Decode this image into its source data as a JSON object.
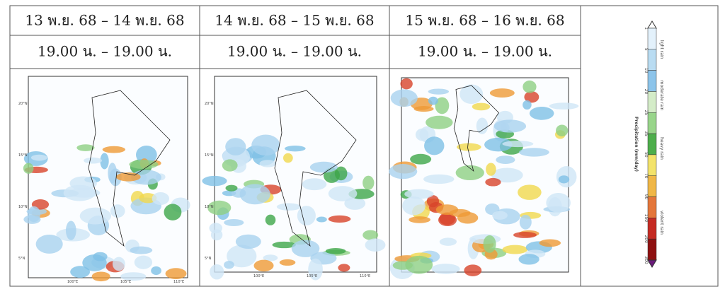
{
  "header": {
    "dates": [
      "13 พ.ย. 68 – 14 พ.ย. 68",
      "14 พ.ย. 68 – 15 พ.ย. 68",
      "15 พ.ย. 68 – 16 พ.ย. 68"
    ],
    "times": [
      "19.00 น. – 19.00 น.",
      "19.00 น. – 19.00 น.",
      "19.00 น. – 19.00 น."
    ]
  },
  "maps": [
    {
      "lat_labels": [
        "20°N",
        "15°N",
        "10°N",
        "5°N"
      ],
      "lon_labels": [
        "100°E",
        "105°E",
        "110°E"
      ]
    },
    {
      "lat_labels": [
        "20°N",
        "15°N",
        "10°N",
        "5°N"
      ],
      "lon_labels": [
        "100°E",
        "105°E",
        "110°E"
      ]
    }
  ],
  "legend": {
    "title": "Precipitation (mm/day)",
    "ticks": [
      1,
      5,
      10,
      20,
      25,
      35,
      50,
      70,
      90,
      150,
      200,
      300
    ],
    "categories": [
      "light rain",
      "moderate rain",
      "heavy rain",
      "violent rain"
    ]
  }
}
